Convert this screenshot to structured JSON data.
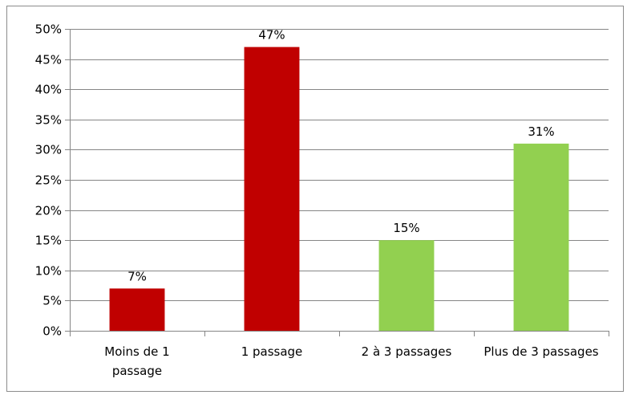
{
  "chart_data": {
    "type": "bar",
    "title": "",
    "xlabel": "",
    "ylabel": "",
    "categories": [
      [
        "Moins de 1",
        "passage"
      ],
      [
        "1 passage"
      ],
      [
        "2 à 3 passages"
      ],
      [
        "Plus de 3 passages"
      ]
    ],
    "values": [
      7,
      47,
      15,
      31
    ],
    "data_labels": [
      "7%",
      "47%",
      "15%",
      "31%"
    ],
    "bar_colors": [
      "#c00000",
      "#c00000",
      "#92d050",
      "#92d050"
    ],
    "ylim": [
      0,
      50
    ],
    "y_ticks": [
      0,
      5,
      10,
      15,
      20,
      25,
      30,
      35,
      40,
      45,
      50
    ],
    "y_tick_labels": [
      "0%",
      "5%",
      "10%",
      "15%",
      "20%",
      "25%",
      "30%",
      "35%",
      "40%",
      "45%",
      "50%"
    ],
    "grid": true,
    "legend": "none",
    "colors": {
      "grid": "#868686",
      "axis": "#868686"
    }
  }
}
